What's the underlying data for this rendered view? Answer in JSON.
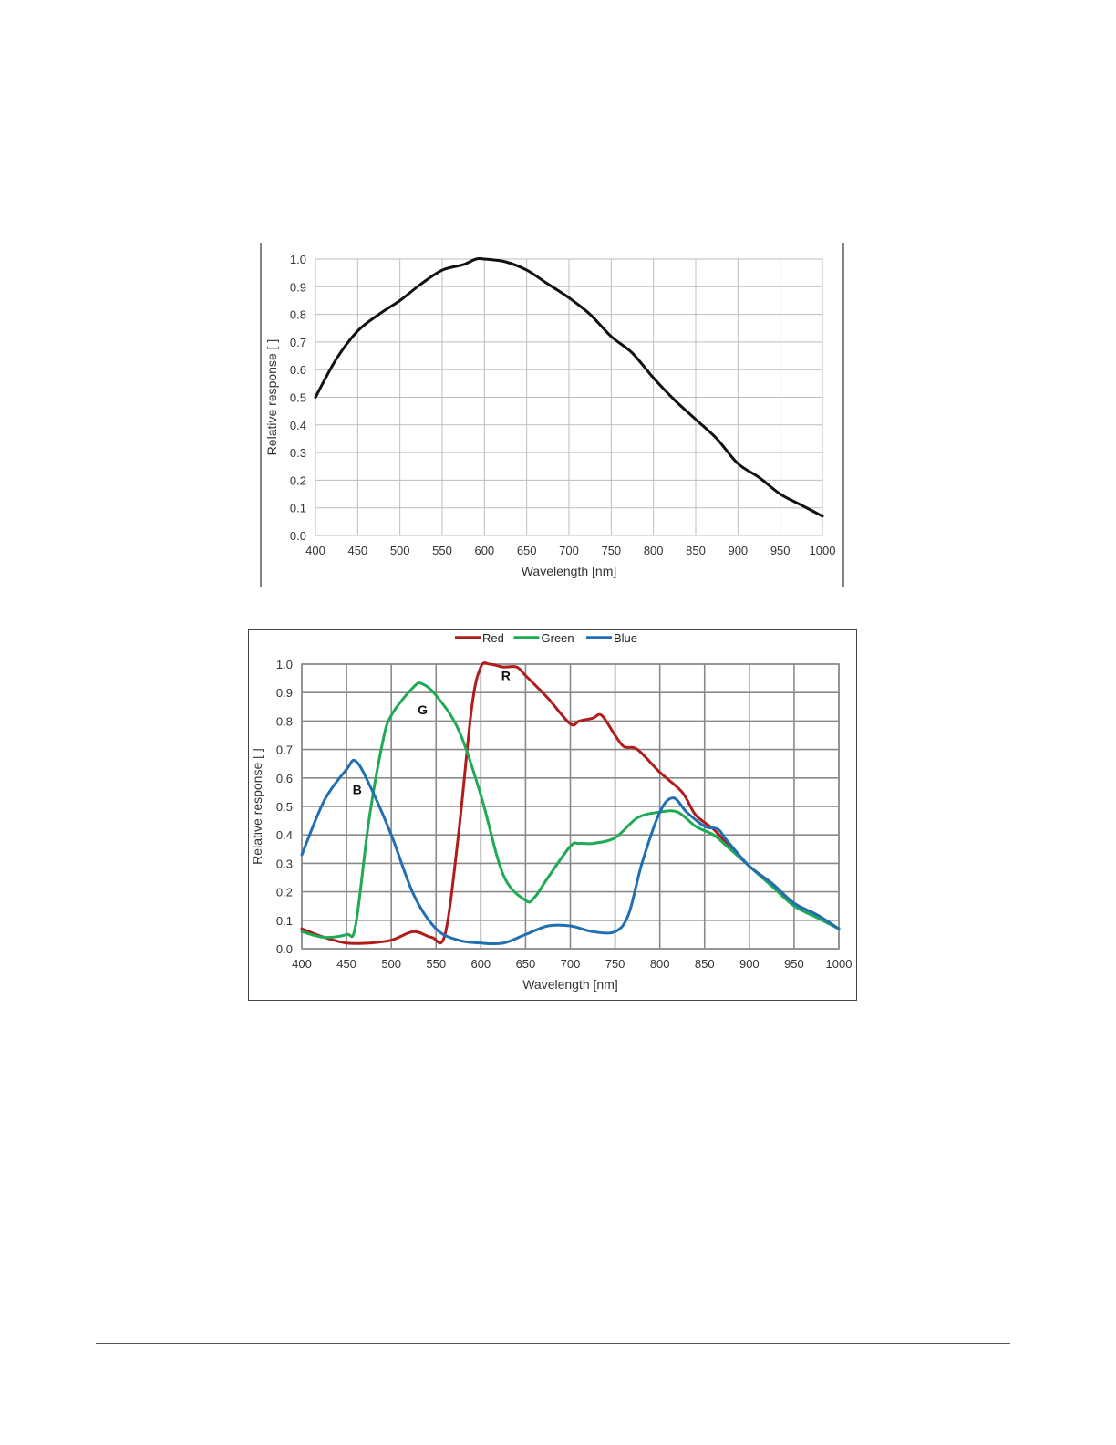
{
  "page": {
    "footer": ""
  },
  "chart_data": [
    {
      "type": "line",
      "title": "",
      "xlabel": "Wavelength [nm]",
      "ylabel": "Relative response [ ]",
      "xlim": [
        400,
        1000
      ],
      "ylim": [
        0.0,
        1.0
      ],
      "grid": true,
      "legend": "none",
      "x_ticks": [
        "400",
        "450",
        "500",
        "550",
        "600",
        "650",
        "700",
        "750",
        "800",
        "850",
        "900",
        "950",
        "1000"
      ],
      "y_ticks": [
        "0.0",
        "0.1",
        "0.2",
        "0.3",
        "0.4",
        "0.5",
        "0.6",
        "0.7",
        "0.8",
        "0.9",
        "1.0"
      ],
      "series": [
        {
          "color": "#111111",
          "points": [
            [
              400,
              0.5
            ],
            [
              425,
              0.64
            ],
            [
              450,
              0.74
            ],
            [
              475,
              0.8
            ],
            [
              500,
              0.85
            ],
            [
              525,
              0.91
            ],
            [
              550,
              0.96
            ],
            [
              575,
              0.98
            ],
            [
              590,
              1.0
            ],
            [
              600,
              1.0
            ],
            [
              625,
              0.99
            ],
            [
              650,
              0.96
            ],
            [
              675,
              0.91
            ],
            [
              700,
              0.86
            ],
            [
              725,
              0.8
            ],
            [
              750,
              0.72
            ],
            [
              775,
              0.66
            ],
            [
              800,
              0.57
            ],
            [
              825,
              0.49
            ],
            [
              850,
              0.42
            ],
            [
              875,
              0.35
            ],
            [
              900,
              0.26
            ],
            [
              925,
              0.21
            ],
            [
              950,
              0.15
            ],
            [
              975,
              0.11
            ],
            [
              1000,
              0.07
            ]
          ]
        }
      ]
    },
    {
      "type": "line",
      "title": "",
      "xlabel": "Wavelength [nm]",
      "ylabel": "Relative response [ ]",
      "xlim": [
        400,
        1000
      ],
      "ylim": [
        0.0,
        1.0
      ],
      "grid": true,
      "legend": "top-center",
      "x_ticks": [
        "400",
        "450",
        "500",
        "550",
        "600",
        "650",
        "700",
        "750",
        "800",
        "850",
        "900",
        "950",
        "1000"
      ],
      "y_ticks": [
        "0.0",
        "0.1",
        "0.2",
        "0.3",
        "0.4",
        "0.5",
        "0.6",
        "0.7",
        "0.8",
        "0.9",
        "1.0"
      ],
      "series": [
        {
          "name": "Red",
          "color": "#b01d1d",
          "label": "R",
          "label_at": [
            628,
            0.96
          ],
          "points": [
            [
              400,
              0.07
            ],
            [
              425,
              0.04
            ],
            [
              450,
              0.02
            ],
            [
              475,
              0.02
            ],
            [
              500,
              0.03
            ],
            [
              525,
              0.06
            ],
            [
              545,
              0.04
            ],
            [
              560,
              0.05
            ],
            [
              575,
              0.4
            ],
            [
              590,
              0.85
            ],
            [
              600,
              0.99
            ],
            [
              610,
              1.0
            ],
            [
              625,
              0.99
            ],
            [
              640,
              0.99
            ],
            [
              650,
              0.96
            ],
            [
              675,
              0.88
            ],
            [
              700,
              0.79
            ],
            [
              710,
              0.8
            ],
            [
              725,
              0.81
            ],
            [
              735,
              0.82
            ],
            [
              750,
              0.75
            ],
            [
              760,
              0.71
            ],
            [
              775,
              0.7
            ],
            [
              800,
              0.62
            ],
            [
              825,
              0.55
            ],
            [
              840,
              0.47
            ],
            [
              860,
              0.42
            ],
            [
              875,
              0.37
            ],
            [
              900,
              0.29
            ],
            [
              925,
              0.23
            ],
            [
              950,
              0.16
            ],
            [
              975,
              0.12
            ],
            [
              1000,
              0.07
            ]
          ]
        },
        {
          "name": "Green",
          "color": "#1faa55",
          "label": "G",
          "label_at": [
            535,
            0.84
          ],
          "points": [
            [
              400,
              0.06
            ],
            [
              425,
              0.04
            ],
            [
              450,
              0.05
            ],
            [
              460,
              0.08
            ],
            [
              475,
              0.45
            ],
            [
              490,
              0.72
            ],
            [
              500,
              0.82
            ],
            [
              525,
              0.92
            ],
            [
              535,
              0.93
            ],
            [
              550,
              0.89
            ],
            [
              575,
              0.77
            ],
            [
              600,
              0.54
            ],
            [
              625,
              0.26
            ],
            [
              650,
              0.17
            ],
            [
              660,
              0.18
            ],
            [
              675,
              0.25
            ],
            [
              700,
              0.36
            ],
            [
              710,
              0.37
            ],
            [
              725,
              0.37
            ],
            [
              750,
              0.39
            ],
            [
              775,
              0.46
            ],
            [
              800,
              0.48
            ],
            [
              820,
              0.48
            ],
            [
              840,
              0.43
            ],
            [
              860,
              0.4
            ],
            [
              875,
              0.36
            ],
            [
              900,
              0.29
            ],
            [
              925,
              0.22
            ],
            [
              950,
              0.15
            ],
            [
              975,
              0.11
            ],
            [
              1000,
              0.07
            ]
          ]
        },
        {
          "name": "Blue",
          "color": "#1f6fb2",
          "label": "B",
          "label_at": [
            462,
            0.56
          ],
          "points": [
            [
              400,
              0.33
            ],
            [
              425,
              0.52
            ],
            [
              450,
              0.63
            ],
            [
              460,
              0.66
            ],
            [
              475,
              0.58
            ],
            [
              500,
              0.4
            ],
            [
              525,
              0.19
            ],
            [
              550,
              0.07
            ],
            [
              575,
              0.03
            ],
            [
              600,
              0.02
            ],
            [
              625,
              0.02
            ],
            [
              650,
              0.05
            ],
            [
              675,
              0.08
            ],
            [
              700,
              0.08
            ],
            [
              725,
              0.06
            ],
            [
              750,
              0.06
            ],
            [
              765,
              0.12
            ],
            [
              780,
              0.3
            ],
            [
              800,
              0.48
            ],
            [
              815,
              0.53
            ],
            [
              830,
              0.48
            ],
            [
              850,
              0.43
            ],
            [
              865,
              0.42
            ],
            [
              875,
              0.38
            ],
            [
              900,
              0.29
            ],
            [
              925,
              0.23
            ],
            [
              950,
              0.16
            ],
            [
              975,
              0.12
            ],
            [
              1000,
              0.07
            ]
          ]
        }
      ]
    }
  ]
}
